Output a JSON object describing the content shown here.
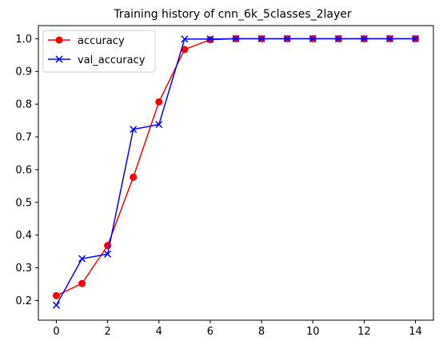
{
  "chart_data": {
    "type": "line",
    "title": "Training history of cnn_6k_5classes_2layer",
    "xlabel": "",
    "ylabel": "",
    "x": [
      0,
      1,
      2,
      3,
      4,
      5,
      6,
      7,
      8,
      9,
      10,
      11,
      12,
      13,
      14
    ],
    "xlim": [
      -0.7,
      14.7
    ],
    "ylim": [
      0.14,
      1.04
    ],
    "xticks": [
      0,
      2,
      4,
      6,
      8,
      10,
      12,
      14
    ],
    "yticks": [
      0.2,
      0.3,
      0.4,
      0.5,
      0.6,
      0.7,
      0.8,
      0.9,
      1.0
    ],
    "xtick_labels": [
      "0",
      "2",
      "4",
      "6",
      "8",
      "10",
      "12",
      "14"
    ],
    "ytick_labels": [
      "0.2",
      "0.3",
      "0.4",
      "0.5",
      "0.6",
      "0.7",
      "0.8",
      "0.9",
      "1.0"
    ],
    "grid": false,
    "legend_position": "top-left",
    "series": [
      {
        "name": "accuracy",
        "color": "#ff0000",
        "marker": "circle",
        "values": [
          0.215,
          0.252,
          0.368,
          0.577,
          0.807,
          0.967,
          0.997,
          1.0,
          1.0,
          1.0,
          1.0,
          1.0,
          1.0,
          1.0,
          1.0
        ]
      },
      {
        "name": "val_accuracy",
        "color": "#0000ff",
        "marker": "x",
        "values": [
          0.186,
          0.328,
          0.342,
          0.723,
          0.738,
          0.999,
          0.999,
          1.0,
          1.0,
          1.0,
          1.0,
          1.0,
          1.0,
          1.0,
          1.0
        ]
      }
    ]
  }
}
